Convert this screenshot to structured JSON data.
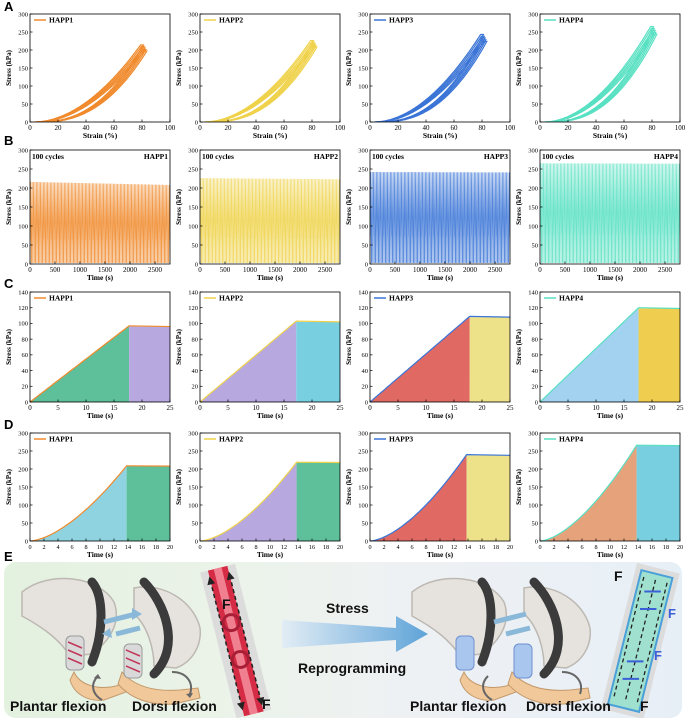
{
  "panel_labels": {
    "a": "A",
    "b": "B",
    "c": "C",
    "d": "D",
    "e": "E"
  },
  "colors": {
    "HAPP1": "#f08a2c",
    "HAPP2": "#efd24a",
    "HAPP3": "#3a74d6",
    "HAPP4": "#58e0c2"
  },
  "chart_data": [
    {
      "id": "A1",
      "type": "line",
      "row": "A",
      "sample": "HAPP1",
      "legend": "HAPP1",
      "xlabel": "Strain (%)",
      "ylabel": "Stress (kPa)",
      "xlim": [
        0,
        100
      ],
      "ylim": [
        0,
        300
      ],
      "xticks": [
        0,
        20,
        40,
        60,
        80,
        100
      ],
      "yticks": [
        0,
        50,
        100,
        150,
        200,
        250,
        300
      ],
      "hysteresis": {
        "strain_min": 3,
        "strain_max": 79,
        "stress_max": 214,
        "loops": 5
      }
    },
    {
      "id": "A2",
      "type": "line",
      "row": "A",
      "sample": "HAPP2",
      "legend": "HAPP2",
      "xlabel": "Strain (%)",
      "ylabel": "Stress (kPa)",
      "xlim": [
        0,
        100
      ],
      "ylim": [
        0,
        300
      ],
      "xticks": [
        0,
        20,
        40,
        60,
        80,
        100
      ],
      "yticks": [
        0,
        50,
        100,
        150,
        200,
        250,
        300
      ],
      "hysteresis": {
        "strain_min": 3,
        "strain_max": 79,
        "stress_max": 226,
        "loops": 5
      }
    },
    {
      "id": "A3",
      "type": "line",
      "row": "A",
      "sample": "HAPP3",
      "legend": "HAPP3",
      "xlabel": "Strain (%)",
      "ylabel": "Stress (kPa)",
      "xlim": [
        0,
        100
      ],
      "ylim": [
        0,
        300
      ],
      "xticks": [
        0,
        20,
        40,
        60,
        80,
        100
      ],
      "yticks": [
        0,
        50,
        100,
        150,
        200,
        250,
        300
      ],
      "hysteresis": {
        "strain_min": 3,
        "strain_max": 79,
        "stress_max": 243,
        "loops": 5
      }
    },
    {
      "id": "A4",
      "type": "line",
      "row": "A",
      "sample": "HAPP4",
      "legend": "HAPP4",
      "xlabel": "Strain (%)",
      "ylabel": "Stress (kPa)",
      "xlim": [
        0,
        100
      ],
      "ylim": [
        0,
        300
      ],
      "xticks": [
        0,
        20,
        40,
        60,
        80,
        100
      ],
      "yticks": [
        0,
        50,
        100,
        150,
        200,
        250,
        300
      ],
      "hysteresis": {
        "strain_min": 3,
        "strain_max": 79,
        "stress_max": 265,
        "loops": 5
      }
    },
    {
      "id": "B1",
      "type": "line",
      "row": "B",
      "sample": "HAPP1",
      "legend": "HAPP1",
      "annotation": "100 cycles",
      "xlabel": "Time (s)",
      "ylabel": "Stress (kPa)",
      "xlim": [
        0,
        2800
      ],
      "ylim": [
        0,
        300
      ],
      "xticks": [
        0,
        500,
        1000,
        1500,
        2000,
        2500
      ],
      "yticks": [
        0,
        50,
        100,
        150,
        200,
        250,
        300
      ],
      "cycles": {
        "count": 100,
        "peak_start": 216,
        "peak_end": 208,
        "min": 3
      }
    },
    {
      "id": "B2",
      "type": "line",
      "row": "B",
      "sample": "HAPP2",
      "legend": "HAPP2",
      "annotation": "100 cycles",
      "xlabel": "Time (s)",
      "ylabel": "Stress (kPa)",
      "xlim": [
        0,
        2800
      ],
      "ylim": [
        0,
        300
      ],
      "xticks": [
        0,
        500,
        1000,
        1500,
        2000,
        2500
      ],
      "yticks": [
        0,
        50,
        100,
        150,
        200,
        250,
        300
      ],
      "cycles": {
        "count": 100,
        "peak_start": 226,
        "peak_end": 223,
        "min": 3
      }
    },
    {
      "id": "B3",
      "type": "line",
      "row": "B",
      "sample": "HAPP3",
      "legend": "HAPP3",
      "annotation": "100 cycles",
      "xlabel": "Time (s)",
      "ylabel": "Stress (kPa)",
      "xlim": [
        0,
        2800
      ],
      "ylim": [
        0,
        300
      ],
      "xticks": [
        0,
        500,
        1000,
        1500,
        2000,
        2500
      ],
      "yticks": [
        0,
        50,
        100,
        150,
        200,
        250,
        300
      ],
      "cycles": {
        "count": 100,
        "peak_start": 242,
        "peak_end": 241,
        "min": 3
      }
    },
    {
      "id": "B4",
      "type": "line",
      "row": "B",
      "sample": "HAPP4",
      "legend": "HAPP4",
      "annotation": "100 cycles",
      "xlabel": "Time (s)",
      "ylabel": "Stress (kPa)",
      "xlim": [
        0,
        2800
      ],
      "ylim": [
        0,
        300
      ],
      "xticks": [
        0,
        500,
        1000,
        1500,
        2000,
        2500
      ],
      "yticks": [
        0,
        50,
        100,
        150,
        200,
        250,
        300
      ],
      "cycles": {
        "count": 100,
        "peak_start": 265,
        "peak_end": 264,
        "min": 3
      }
    },
    {
      "id": "C1",
      "type": "area",
      "row": "C",
      "sample": "HAPP1",
      "legend": "HAPP1",
      "xlabel": "Time (s)",
      "ylabel": "Stress (kPa)",
      "xlim": [
        0,
        25
      ],
      "ylim": [
        0,
        140
      ],
      "xticks": [
        0,
        5,
        10,
        15,
        20,
        25
      ],
      "yticks": [
        0,
        20,
        40,
        60,
        80,
        100,
        120,
        140
      ],
      "curve": "linear",
      "t_peak": 17.7,
      "peak": 97,
      "hold": 96,
      "fill_load": "#5ec09a",
      "fill_hold": "#b7a8e0"
    },
    {
      "id": "C2",
      "type": "area",
      "row": "C",
      "sample": "HAPP2",
      "legend": "HAPP2",
      "xlabel": "Time (s)",
      "ylabel": "Stress (kPa)",
      "xlim": [
        0,
        25
      ],
      "ylim": [
        0,
        140
      ],
      "xticks": [
        0,
        5,
        10,
        15,
        20,
        25
      ],
      "yticks": [
        0,
        20,
        40,
        60,
        80,
        100,
        120,
        140
      ],
      "curve": "linear",
      "t_peak": 17.2,
      "peak": 103,
      "hold": 102,
      "fill_load": "#b7a8e0",
      "fill_hold": "#78cfe0"
    },
    {
      "id": "C3",
      "type": "area",
      "row": "C",
      "sample": "HAPP3",
      "legend": "HAPP3",
      "xlabel": "Time (s)",
      "ylabel": "Stress (kPa)",
      "xlim": [
        0,
        25
      ],
      "ylim": [
        0,
        140
      ],
      "xticks": [
        0,
        5,
        10,
        15,
        20,
        25
      ],
      "yticks": [
        0,
        20,
        40,
        60,
        80,
        100,
        120,
        140
      ],
      "curve": "linear",
      "t_peak": 17.8,
      "peak": 109,
      "hold": 108,
      "fill_load": "#e06a63",
      "fill_hold": "#ede18a"
    },
    {
      "id": "C4",
      "type": "area",
      "row": "C",
      "sample": "HAPP4",
      "legend": "HAPP4",
      "xlabel": "Time (s)",
      "ylabel": "Stress (kPa)",
      "xlim": [
        0,
        25
      ],
      "ylim": [
        0,
        140
      ],
      "xticks": [
        0,
        5,
        10,
        15,
        20,
        25
      ],
      "yticks": [
        0,
        20,
        40,
        60,
        80,
        100,
        120,
        140
      ],
      "curve": "linear",
      "t_peak": 17.6,
      "peak": 120,
      "hold": 119,
      "fill_load": "#a2d2f0",
      "fill_hold": "#efcd4e"
    },
    {
      "id": "D1",
      "type": "area",
      "row": "D",
      "sample": "HAPP1",
      "legend": "HAPP1",
      "xlabel": "Time (s)",
      "ylabel": "Stress (kPa)",
      "xlim": [
        0,
        20
      ],
      "ylim": [
        0,
        300
      ],
      "xticks": [
        0,
        2,
        4,
        6,
        8,
        10,
        12,
        14,
        16,
        18,
        20
      ],
      "yticks": [
        0,
        50,
        100,
        150,
        200,
        250,
        300
      ],
      "curve": "convex",
      "t_peak": 13.8,
      "peak": 209,
      "hold": 208,
      "fill_load": "#8fd3e0",
      "fill_hold": "#5ec09a"
    },
    {
      "id": "D2",
      "type": "area",
      "row": "D",
      "sample": "HAPP2",
      "legend": "HAPP2",
      "xlabel": "Time (s)",
      "ylabel": "Stress (kPa)",
      "xlim": [
        0,
        20
      ],
      "ylim": [
        0,
        300
      ],
      "xticks": [
        0,
        2,
        4,
        6,
        8,
        10,
        12,
        14,
        16,
        18,
        20
      ],
      "yticks": [
        0,
        50,
        100,
        150,
        200,
        250,
        300
      ],
      "curve": "convex",
      "t_peak": 13.8,
      "peak": 219,
      "hold": 218,
      "fill_load": "#b7a8e0",
      "fill_hold": "#5ec09a"
    },
    {
      "id": "D3",
      "type": "area",
      "row": "D",
      "sample": "HAPP3",
      "legend": "HAPP3",
      "xlabel": "Time (s)",
      "ylabel": "Stress (kPa)",
      "xlim": [
        0,
        20
      ],
      "ylim": [
        0,
        300
      ],
      "xticks": [
        0,
        2,
        4,
        6,
        8,
        10,
        12,
        14,
        16,
        18,
        20
      ],
      "yticks": [
        0,
        50,
        100,
        150,
        200,
        250,
        300
      ],
      "curve": "convex",
      "t_peak": 13.8,
      "peak": 240,
      "hold": 238,
      "fill_load": "#e06a63",
      "fill_hold": "#ede18a"
    },
    {
      "id": "D4",
      "type": "area",
      "row": "D",
      "sample": "HAPP4",
      "legend": "HAPP4",
      "xlabel": "Time (s)",
      "ylabel": "Stress (kPa)",
      "xlim": [
        0,
        20
      ],
      "ylim": [
        0,
        300
      ],
      "xticks": [
        0,
        2,
        4,
        6,
        8,
        10,
        12,
        14,
        16,
        18,
        20
      ],
      "yticks": [
        0,
        50,
        100,
        150,
        200,
        250,
        300
      ],
      "curve": "convex",
      "t_peak": 13.8,
      "peak": 266,
      "hold": 265,
      "fill_load": "#e5a27b",
      "fill_hold": "#78cfe0"
    }
  ],
  "schematic": {
    "left_caption_1": "Plantar flexion",
    "left_caption_2": "Dorsi flexion",
    "right_caption_1": "Plantar flexion",
    "right_caption_2": "Dorsi flexion",
    "arrow_top": "Stress",
    "arrow_bottom": "Reprogramming",
    "force_left_top": "F",
    "force_left_bottom": "F",
    "force_right_top": "F",
    "force_right_bottom": "F",
    "force_right_side_1": "F",
    "force_right_side_2": "F"
  }
}
